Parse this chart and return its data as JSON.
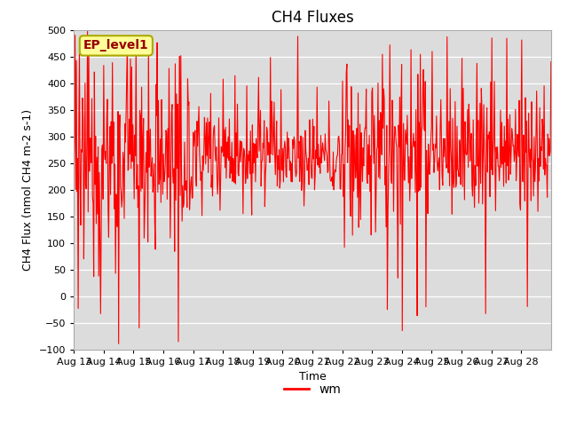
{
  "title": "CH4 Fluxes",
  "xlabel": "Time",
  "ylabel": "CH4 Flux (nmol CH4 m-2 s-1)",
  "ylim": [
    -100,
    500
  ],
  "yticks": [
    -100,
    -50,
    0,
    50,
    100,
    150,
    200,
    250,
    300,
    350,
    400,
    450,
    500
  ],
  "line_color": "#ff0000",
  "line_width": 0.8,
  "bg_color": "#dcdcdc",
  "legend_label": "wm",
  "annotation_text": "EP_level1",
  "annotation_box_facecolor": "#ffff99",
  "annotation_box_edgecolor": "#aaaa00",
  "xticklabels": [
    "Aug 13",
    "Aug 14",
    "Aug 15",
    "Aug 16",
    "Aug 17",
    "Aug 18",
    "Aug 19",
    "Aug 20",
    "Aug 21",
    "Aug 22",
    "Aug 23",
    "Aug 24",
    "Aug 25",
    "Aug 26",
    "Aug 27",
    "Aug 28"
  ],
  "title_fontsize": 12,
  "axis_label_fontsize": 9,
  "tick_fontsize": 8,
  "legend_fontsize": 10,
  "annotation_fontsize": 10
}
